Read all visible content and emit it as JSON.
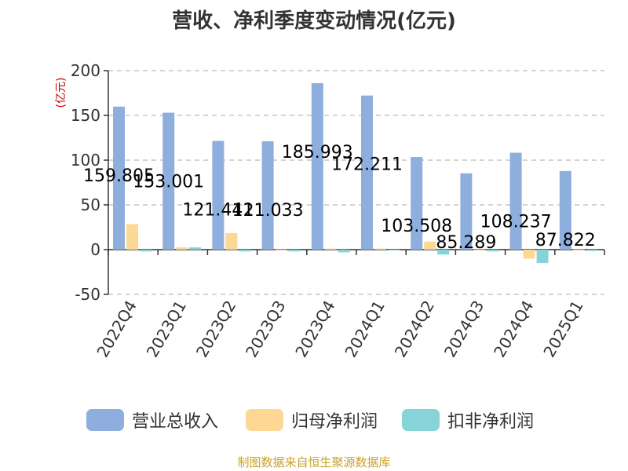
{
  "chart_data": {
    "type": "bar",
    "title": "营收、净利季度变动情况(亿元)",
    "ylabel": "(亿元)",
    "xlabel": "",
    "ylim": [
      -50,
      200
    ],
    "yticks": [
      -50,
      0,
      50,
      100,
      150,
      200
    ],
    "ytick_labels": [
      "-50",
      "0",
      "50",
      "100",
      "150",
      "200"
    ],
    "grid": true,
    "legend_position": "bottom",
    "categories": [
      "2022Q4",
      "2023Q1",
      "2023Q2",
      "2023Q3",
      "2023Q4",
      "2024Q1",
      "2024Q2",
      "2024Q3",
      "2024Q4",
      "2025Q1"
    ],
    "series": [
      {
        "name": "营业总收入",
        "color": "#8eaedd",
        "values": [
          159.805,
          153.001,
          121.441,
          121.033,
          185.993,
          172.211,
          103.508,
          85.289,
          108.237,
          87.822
        ],
        "labels": [
          "159.805",
          "153.001",
          "121.441",
          "121.033",
          "185.993",
          "172.211",
          "103.508",
          "85.289",
          "108.237",
          "87.822"
        ]
      },
      {
        "name": "归母净利润",
        "color": "#fdd894",
        "values": [
          28.5,
          2.5,
          18.5,
          0.2,
          1.2,
          1.2,
          9.0,
          0.2,
          -10.0,
          0.2
        ]
      },
      {
        "name": "扣非净利润",
        "color": "#87d4d8",
        "values": [
          -2.0,
          2.5,
          -2.0,
          -2.0,
          -3.0,
          -0.5,
          -5.5,
          -2.0,
          -15.0,
          -1.5
        ]
      }
    ]
  },
  "footer": {
    "source": "制图数据来自恒生聚源数据库"
  }
}
